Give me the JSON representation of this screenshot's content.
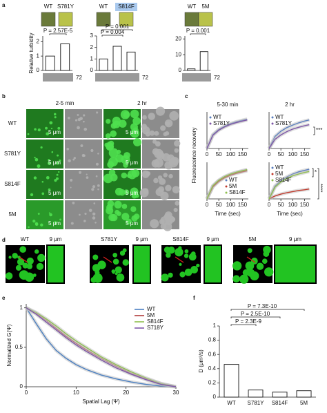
{
  "figure": {
    "panel_labels": [
      "a",
      "b",
      "c",
      "d",
      "e",
      "f"
    ],
    "a": {
      "tube_labels": [
        "WT",
        "S781Y",
        "WT",
        "S814F",
        "WT",
        "5M"
      ],
      "marker_labels": [
        "72",
        "72",
        "72"
      ]
    },
    "b": {
      "columns": [
        "2-5 min",
        "2 hr"
      ],
      "rows": [
        "WT",
        "S781Y",
        "S814F",
        "5M"
      ],
      "scale_bar": "5 μm"
    },
    "d": {
      "labels": [
        "WT",
        "S781Y",
        "S814F",
        "5M"
      ],
      "scale_bar": "9 μm"
    }
  },
  "chart_data": [
    {
      "type": "bar",
      "ylabel": "Relative turbidity",
      "categories": [
        null,
        null
      ],
      "values": [
        1,
        1.85
      ],
      "color": "#ffffff",
      "ylim": [
        0,
        2.4
      ],
      "yticks": [
        0,
        1,
        2
      ],
      "annotations": [
        "P = 2.57E-5"
      ]
    },
    {
      "type": "bar",
      "categories": [
        null,
        null,
        null
      ],
      "values": [
        1,
        2.1,
        1.6
      ],
      "color": "#ffffff",
      "ylim": [
        0,
        3
      ],
      "yticks": [
        0,
        1,
        2,
        3
      ],
      "annotations": [
        "P = 0.001",
        "P = 0.004"
      ]
    },
    {
      "type": "bar",
      "categories": [
        null,
        null
      ],
      "values": [
        1,
        12
      ],
      "color": "#ffffff",
      "ylim": [
        0,
        22
      ],
      "yticks": [
        0,
        10,
        20
      ],
      "annotations": [
        "P = 0.001"
      ]
    },
    {
      "type": "line",
      "title": "5-30 min",
      "ylabel": "Fluorescence recovery",
      "x": [
        0,
        25,
        50,
        75,
        100,
        125,
        150,
        170
      ],
      "xlim": [
        0,
        175
      ],
      "xticks": [
        0,
        50,
        100,
        150
      ],
      "ylim": [
        0,
        1
      ],
      "legend": "upper left",
      "series": [
        {
          "name": "WT",
          "color": "#5b7fbf",
          "values": [
            0,
            0.38,
            0.52,
            0.61,
            0.68,
            0.73,
            0.77,
            0.8
          ]
        },
        {
          "name": "S781Y",
          "color": "#7e57a8",
          "values": [
            0,
            0.36,
            0.5,
            0.59,
            0.66,
            0.71,
            0.75,
            0.78
          ]
        }
      ]
    },
    {
      "type": "line",
      "title": "2 hr",
      "x": [
        0,
        25,
        50,
        75,
        100,
        125,
        150,
        170
      ],
      "xlim": [
        0,
        175
      ],
      "xticks": [
        0,
        50,
        100,
        150
      ],
      "ylim": [
        0,
        1
      ],
      "legend": "upper left",
      "annotations": [
        "***"
      ],
      "series": [
        {
          "name": "WT",
          "color": "#5b7fbf",
          "values": [
            0,
            0.33,
            0.47,
            0.57,
            0.64,
            0.7,
            0.75,
            0.78
          ]
        },
        {
          "name": "S781Y",
          "color": "#7e57a8",
          "values": [
            0,
            0.25,
            0.37,
            0.46,
            0.53,
            0.58,
            0.62,
            0.65
          ]
        }
      ]
    },
    {
      "type": "line",
      "xlabel": "Time (sec)",
      "x": [
        0,
        25,
        50,
        75,
        100,
        125,
        150,
        170
      ],
      "xlim": [
        0,
        175
      ],
      "xticks": [
        0,
        50,
        100,
        150
      ],
      "ylim": [
        0,
        1
      ],
      "legend": "lower right",
      "series": [
        {
          "name": "WT",
          "color": "#5b7fbf",
          "values": [
            0,
            0.35,
            0.5,
            0.6,
            0.67,
            0.72,
            0.76,
            0.79
          ]
        },
        {
          "name": "5M",
          "color": "#c0392b",
          "values": [
            0,
            0.33,
            0.48,
            0.58,
            0.65,
            0.7,
            0.74,
            0.77
          ]
        },
        {
          "name": "S814F",
          "color": "#8fbf4f",
          "values": [
            0,
            0.36,
            0.51,
            0.61,
            0.68,
            0.73,
            0.77,
            0.8
          ]
        }
      ]
    },
    {
      "type": "line",
      "xlabel": "Time (sec)",
      "x": [
        0,
        25,
        50,
        75,
        100,
        125,
        150,
        170
      ],
      "xlim": [
        0,
        175
      ],
      "xticks": [
        0,
        50,
        100,
        150
      ],
      "ylim": [
        0,
        1
      ],
      "legend": "upper left",
      "annotations": [
        "*",
        "****"
      ],
      "series": [
        {
          "name": "WT",
          "color": "#5b7fbf",
          "values": [
            0,
            0.35,
            0.5,
            0.6,
            0.68,
            0.74,
            0.78,
            0.81
          ]
        },
        {
          "name": "5M",
          "color": "#c0392b",
          "values": [
            0,
            0.08,
            0.13,
            0.17,
            0.2,
            0.23,
            0.25,
            0.27
          ]
        },
        {
          "name": "S814F",
          "color": "#8fbf4f",
          "values": [
            0,
            0.32,
            0.46,
            0.56,
            0.63,
            0.68,
            0.72,
            0.75
          ]
        }
      ]
    },
    {
      "type": "line",
      "xlabel": "Spatial Lag (Ψ)",
      "ylabel": "Normalized G(Ψ)",
      "x": [
        0,
        2,
        4,
        6,
        8,
        10,
        12,
        15,
        18,
        21,
        24,
        27,
        30
      ],
      "xlim": [
        0,
        30
      ],
      "xticks": [
        0,
        10,
        20,
        30
      ],
      "ylim": [
        0,
        1.05
      ],
      "yticks": [
        0,
        0.5,
        1
      ],
      "legend": "upper right",
      "series": [
        {
          "name": "WT",
          "color": "#4a7fc1",
          "values": [
            1,
            0.8,
            0.61,
            0.46,
            0.36,
            0.28,
            0.22,
            0.15,
            0.1,
            0.06,
            0.03,
            0.01,
            0
          ]
        },
        {
          "name": "5M",
          "color": "#b03a3a",
          "values": [
            1,
            0.93,
            0.84,
            0.74,
            0.64,
            0.55,
            0.47,
            0.36,
            0.26,
            0.17,
            0.1,
            0.04,
            0
          ]
        },
        {
          "name": "S814F",
          "color": "#8fbf4f",
          "values": [
            1,
            0.94,
            0.86,
            0.77,
            0.67,
            0.58,
            0.5,
            0.38,
            0.28,
            0.19,
            0.11,
            0.04,
            0
          ]
        },
        {
          "name": "S718Y",
          "color": "#7e57a8",
          "values": [
            1,
            0.92,
            0.82,
            0.72,
            0.62,
            0.53,
            0.45,
            0.34,
            0.24,
            0.16,
            0.09,
            0.03,
            0
          ]
        }
      ]
    },
    {
      "type": "bar",
      "ylabel": "D (μm²/s)",
      "categories": [
        "WT",
        "S781Y",
        "S814F",
        "5M"
      ],
      "values": [
        0.46,
        0.1,
        0.07,
        0.09
      ],
      "color": "#ffffff",
      "ylim": [
        0,
        1
      ],
      "yticks": [
        0,
        0.2,
        0.4,
        0.6,
        0.8,
        1
      ],
      "annotations": [
        "P = 7.3E-10",
        "P = 2.5E-10",
        "P = 2.3E-9"
      ]
    }
  ]
}
